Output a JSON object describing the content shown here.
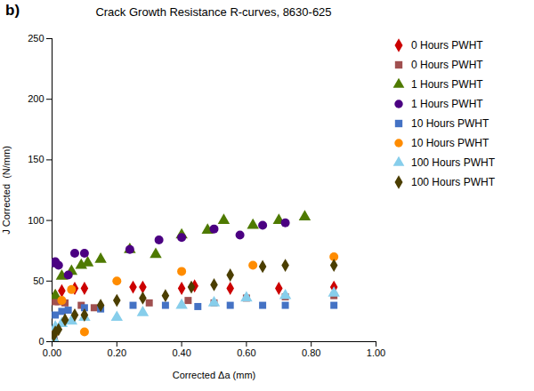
{
  "chart_data": {
    "type": "scatter",
    "title": "Crack Growth Resistance R-curves, 8630-625",
    "xlabel": "Corrected Δa (mm)",
    "ylabel": "J Corrected  (N/mm)",
    "annotation": "b)",
    "xlim": [
      0,
      1.0
    ],
    "ylim": [
      0,
      250
    ],
    "xticks": [
      {
        "value": 0.0,
        "label": "0.00"
      },
      {
        "value": 0.2,
        "label": "0.20"
      },
      {
        "value": 0.4,
        "label": "0.40"
      },
      {
        "value": 0.6,
        "label": "0.60"
      },
      {
        "value": 0.8,
        "label": "0.80"
      },
      {
        "value": 1.0,
        "label": "1.00"
      }
    ],
    "yticks": [
      0,
      50,
      100,
      150,
      200,
      250
    ],
    "grid": false,
    "legend": "right",
    "series": [
      {
        "name": "0 Hours PWHT",
        "color": "#CC0000",
        "marker": "diamond",
        "x": [
          0.005,
          0.01,
          0.03,
          0.07,
          0.1,
          0.25,
          0.28,
          0.4,
          0.44,
          0.55,
          0.7,
          0.87
        ],
        "values": [
          3,
          38,
          42,
          44,
          44,
          45,
          45,
          44,
          46,
          44,
          44,
          45
        ]
      },
      {
        "name": "0 Hours PWHT",
        "color": "#A05050",
        "marker": "square",
        "x": [
          0.005,
          0.01,
          0.02,
          0.04,
          0.09,
          0.13,
          0.3,
          0.42,
          0.5,
          0.6,
          0.72,
          0.87
        ],
        "values": [
          5,
          33,
          33,
          32,
          30,
          28,
          32,
          34,
          32,
          36,
          37,
          38
        ]
      },
      {
        "name": "1 Hours PWHT",
        "color": "#4E7A00",
        "marker": "triangle",
        "x": [
          0.005,
          0.01,
          0.03,
          0.06,
          0.09,
          0.11,
          0.15,
          0.24,
          0.32,
          0.4,
          0.48,
          0.53,
          0.62,
          0.7,
          0.78
        ],
        "values": [
          2,
          38,
          54,
          58,
          63,
          65,
          68,
          76,
          72,
          88,
          92,
          100,
          96,
          100,
          103
        ]
      },
      {
        "name": "1 Hours PWHT",
        "color": "#4B0082",
        "marker": "circle",
        "x": [
          0.005,
          0.01,
          0.02,
          0.05,
          0.07,
          0.1,
          0.24,
          0.33,
          0.4,
          0.5,
          0.58,
          0.65,
          0.72
        ],
        "values": [
          65,
          66,
          63,
          55,
          73,
          73,
          76,
          84,
          86,
          93,
          88,
          96,
          98
        ]
      },
      {
        "name": "10 Hours PWHT",
        "color": "#4472C4",
        "marker": "square",
        "x": [
          0.005,
          0.01,
          0.03,
          0.05,
          0.1,
          0.15,
          0.25,
          0.35,
          0.45,
          0.55,
          0.65,
          0.72,
          0.87
        ],
        "values": [
          3,
          22,
          25,
          26,
          28,
          27,
          30,
          30,
          29,
          30,
          30,
          30,
          30
        ]
      },
      {
        "name": "10 Hours PWHT",
        "color": "#FF8C00",
        "marker": "circle",
        "x": [
          0.005,
          0.03,
          0.06,
          0.1,
          0.2,
          0.4,
          0.62,
          0.87
        ],
        "values": [
          7,
          34,
          43,
          8,
          50,
          58,
          63,
          70
        ]
      },
      {
        "name": "100 Hours PWHT",
        "color": "#87CEEB",
        "marker": "triangle",
        "x": [
          0.005,
          0.01,
          0.03,
          0.06,
          0.1,
          0.2,
          0.28,
          0.4,
          0.5,
          0.6,
          0.72,
          0.87
        ],
        "values": [
          2,
          12,
          15,
          17,
          20,
          20,
          24,
          30,
          32,
          36,
          38,
          40
        ]
      },
      {
        "name": "100 Hours PWHT",
        "color": "#4B3E00",
        "marker": "diamond",
        "x": [
          0.005,
          0.01,
          0.02,
          0.04,
          0.07,
          0.1,
          0.15,
          0.2,
          0.28,
          0.35,
          0.43,
          0.5,
          0.55,
          0.65,
          0.72,
          0.87
        ],
        "values": [
          5,
          8,
          10,
          18,
          22,
          22,
          30,
          34,
          36,
          38,
          45,
          47,
          55,
          62,
          63,
          63
        ]
      }
    ]
  }
}
